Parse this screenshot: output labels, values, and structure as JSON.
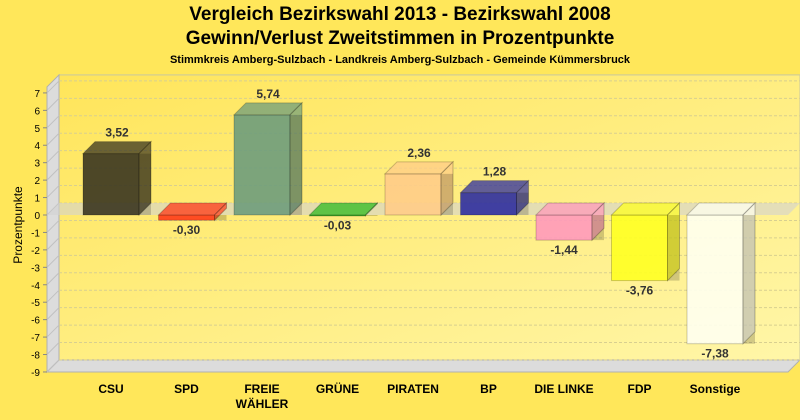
{
  "chart_data": {
    "type": "bar",
    "title": "Vergleich Bezirkswahl 2013 - Bezirkswahl 2008",
    "title2": "Gewinn/Verlust Zweitstimmen in Prozentpunkte",
    "subtitle": "Stimmkreis Amberg-Sulzbach - Landkreis Amberg-Sulzbach - Gemeinde Kümmersbruck",
    "ylabel": "Prozentpunkte",
    "xlabel": "",
    "ylim": [
      -9,
      7
    ],
    "yticks": [
      "7",
      "6",
      "5",
      "4",
      "3",
      "2",
      "1",
      "0",
      "-1",
      "-2",
      "-3",
      "-4",
      "-5",
      "-6",
      "-7",
      "-8",
      "-9"
    ],
    "grid": true,
    "categories": [
      [
        "CSU"
      ],
      [
        "SPD"
      ],
      [
        "FREIE",
        "WÄHLER"
      ],
      [
        "GRÜNE"
      ],
      [
        "PIRATEN"
      ],
      [
        "BP"
      ],
      [
        "DIE LINKE"
      ],
      [
        "FDP"
      ],
      [
        "Sonstige"
      ]
    ],
    "values": [
      3.52,
      -0.3,
      5.74,
      -0.03,
      2.36,
      1.28,
      -1.44,
      -3.76,
      -7.38
    ],
    "labels": [
      "3,52",
      "-0,30",
      "5,74",
      "-0,03",
      "2,36",
      "1,28",
      "-1,44",
      "-3,76",
      "-7,38"
    ],
    "colors": [
      "#3a3520",
      "#ff3b1a",
      "#6e9c7c",
      "#33bb22",
      "#ffcc88",
      "#2e2e9e",
      "#ff99bb",
      "#ffff22",
      "#fffff0"
    ]
  }
}
